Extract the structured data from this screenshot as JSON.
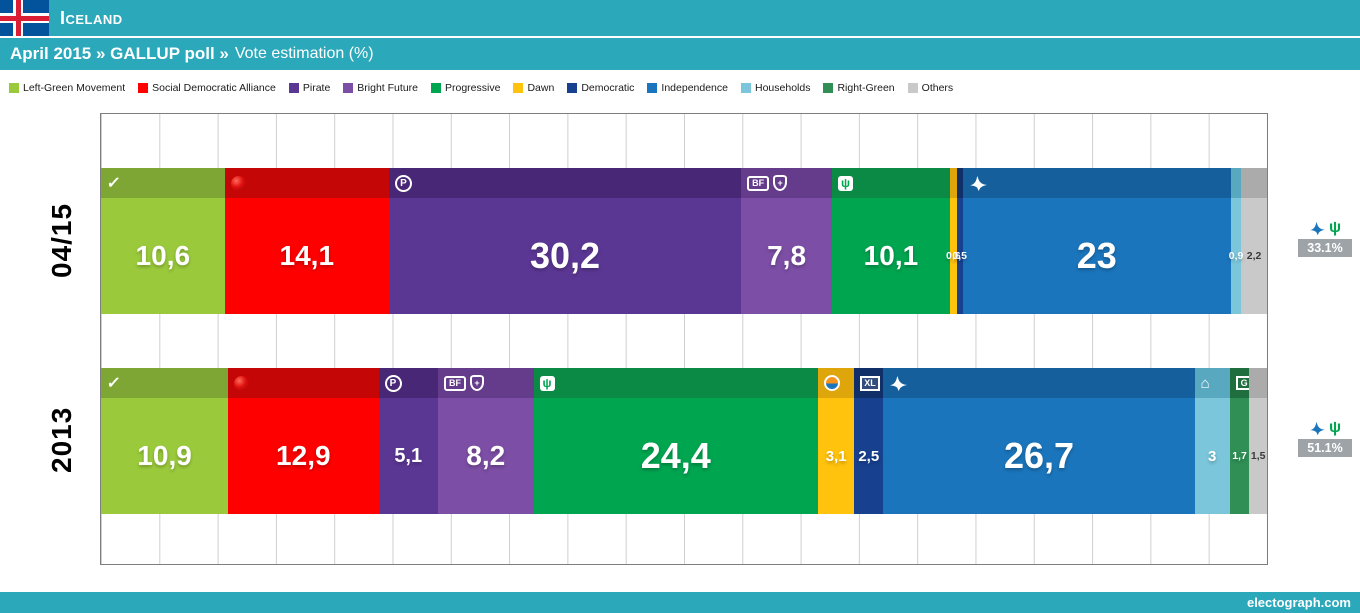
{
  "header": {
    "country": "Iceland",
    "title_bold": "April 2015 » GALLUP poll »",
    "title_normal": "Vote estimation (%)"
  },
  "footer": {
    "site_label": "electograph.com"
  },
  "colors": {
    "band_teal": "#2BA8BA",
    "flag_blue": "#02529C",
    "flag_red": "#DC1E35",
    "badge_gray": "#9EA3A8"
  },
  "legend": [
    {
      "label": "Left-Green Movement",
      "color": "#9ACA3C"
    },
    {
      "label": "Social Democratic Alliance",
      "color": "#FE0000"
    },
    {
      "label": "Pirate",
      "color": "#5B3794"
    },
    {
      "label": "Bright Future",
      "color": "#7C4EA5"
    },
    {
      "label": "Progressive",
      "color": "#00A550"
    },
    {
      "label": "Dawn",
      "color": "#FFC20D"
    },
    {
      "label": "Democratic",
      "color": "#17418F"
    },
    {
      "label": "Independence",
      "color": "#1B75BC"
    },
    {
      "label": "Households",
      "color": "#7BC6DB"
    },
    {
      "label": "Right-Green",
      "color": "#2F8F55"
    },
    {
      "label": "Others",
      "color": "#C9C9C9"
    }
  ],
  "chart_data": {
    "type": "bar",
    "orientation": "horizontal",
    "stacked": true,
    "unit": "%",
    "title": "April 2015 GALLUP poll — Vote estimation (%)",
    "xlim": [
      0,
      100
    ],
    "gridline_step": 5,
    "grid": true,
    "rows": [
      {
        "label": "04/15",
        "segments": [
          {
            "party": "Left-Green Movement",
            "value": 10.6,
            "display": "10,6",
            "color": "#9ACA3C",
            "header_color": "#7EA634",
            "icons": [
              "check"
            ]
          },
          {
            "party": "Social Democratic Alliance",
            "value": 14.1,
            "display": "14,1",
            "color": "#FE0000",
            "header_color": "#C40606",
            "icons": [
              "rose"
            ]
          },
          {
            "party": "Pirate",
            "value": 30.2,
            "display": "30,2",
            "color": "#5B3794",
            "header_color": "#482876",
            "icons": [
              "pirate"
            ]
          },
          {
            "party": "Bright Future",
            "value": 7.8,
            "display": "7,8",
            "color": "#7C4EA5",
            "header_color": "#643C8B",
            "icons": [
              "bf",
              "shield"
            ]
          },
          {
            "party": "Progressive",
            "value": 10.1,
            "display": "10,1",
            "color": "#00A550",
            "header_color": "#0A8A45",
            "icons": [
              "sprout"
            ]
          },
          {
            "party": "Dawn",
            "value": 0.6,
            "display": "0,6",
            "color": "#FFC20D",
            "header_color": "#DFA60B",
            "icons": []
          },
          {
            "party": "Democratic",
            "value": 0.5,
            "display": "0,5",
            "color": "#17418F",
            "header_color": "#102E68",
            "icons": []
          },
          {
            "party": "Independence",
            "value": 23,
            "display": "23",
            "color": "#1B75BC",
            "header_color": "#155F9C",
            "icons": [
              "falcon"
            ]
          },
          {
            "party": "Households",
            "value": 0.9,
            "display": "0,9",
            "color": "#7BC6DB",
            "header_color": "#58A8C0",
            "icons": []
          },
          {
            "party": "Others",
            "value": 2.2,
            "display": "2,2",
            "color": "#C9C9C9",
            "header_color": "#ABABAB",
            "icons": [],
            "label_color": "#3a3a3a"
          }
        ],
        "coalition": {
          "display": "33.1%",
          "parties": [
            "Independence",
            "Progressive"
          ]
        }
      },
      {
        "label": "2013",
        "segments": [
          {
            "party": "Left-Green Movement",
            "value": 10.9,
            "display": "10,9",
            "color": "#9ACA3C",
            "header_color": "#7EA634",
            "icons": [
              "check"
            ]
          },
          {
            "party": "Social Democratic Alliance",
            "value": 12.9,
            "display": "12,9",
            "color": "#FE0000",
            "header_color": "#C40606",
            "icons": [
              "rose"
            ]
          },
          {
            "party": "Pirate",
            "value": 5.1,
            "display": "5,1",
            "color": "#5B3794",
            "header_color": "#482876",
            "icons": [
              "pirate"
            ]
          },
          {
            "party": "Bright Future",
            "value": 8.2,
            "display": "8,2",
            "color": "#7C4EA5",
            "header_color": "#643C8B",
            "icons": [
              "bf",
              "shield"
            ]
          },
          {
            "party": "Progressive",
            "value": 24.4,
            "display": "24,4",
            "color": "#00A550",
            "header_color": "#0A8A45",
            "icons": [
              "sprout"
            ]
          },
          {
            "party": "Dawn",
            "value": 3.1,
            "display": "3,1",
            "color": "#FFC20D",
            "header_color": "#DFA60B",
            "icons": [
              "dawn"
            ]
          },
          {
            "party": "Democratic",
            "value": 2.5,
            "display": "2,5",
            "color": "#17418F",
            "header_color": "#102E68",
            "icons": [
              "xl"
            ]
          },
          {
            "party": "Independence",
            "value": 26.7,
            "display": "26,7",
            "color": "#1B75BC",
            "header_color": "#155F9C",
            "icons": [
              "falcon"
            ]
          },
          {
            "party": "Households",
            "value": 3,
            "display": "3",
            "color": "#7BC6DB",
            "header_color": "#58A8C0",
            "icons": [
              "house"
            ]
          },
          {
            "party": "Right-Green",
            "value": 1.7,
            "display": "1,7",
            "color": "#2F8F55",
            "header_color": "#1F6E3E",
            "icons": [
              "g"
            ]
          },
          {
            "party": "Others",
            "value": 1.5,
            "display": "1,5",
            "color": "#C9C9C9",
            "header_color": "#ABABAB",
            "icons": [],
            "label_color": "#3a3a3a"
          }
        ],
        "coalition": {
          "display": "51.1%",
          "parties": [
            "Independence",
            "Progressive"
          ]
        }
      }
    ]
  }
}
